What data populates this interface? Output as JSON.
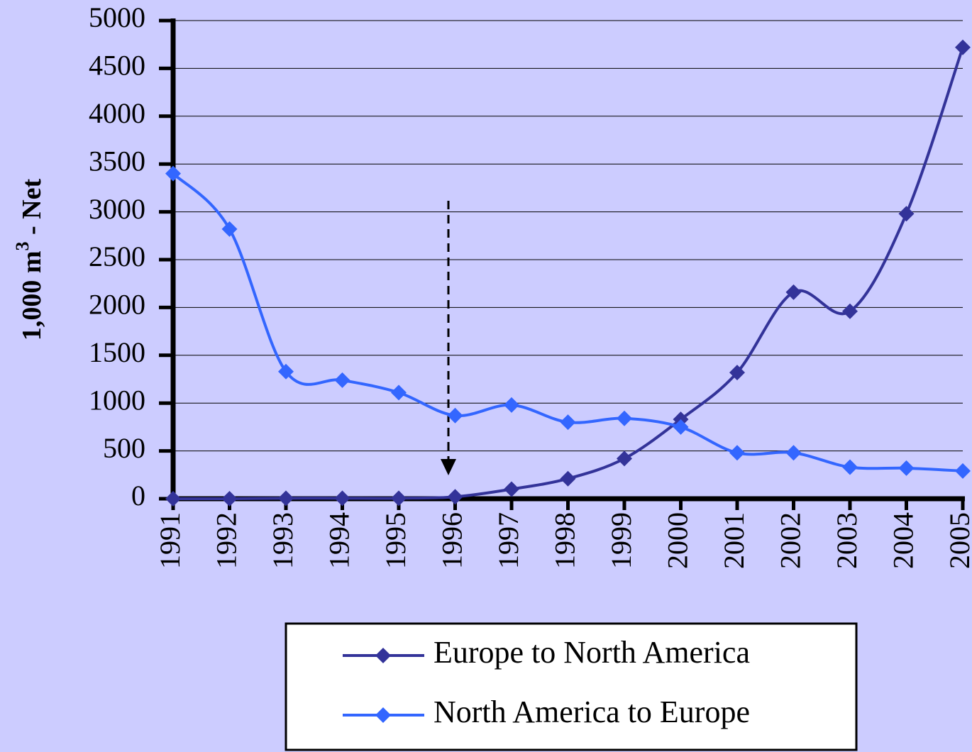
{
  "chart_data": {
    "type": "line",
    "y_label": {
      "main": "1,000 m",
      "sup": "3",
      "rest": " - Net"
    },
    "categories": [
      "1991",
      "1992",
      "1993",
      "1994",
      "1995",
      "1996",
      "1997",
      "1998",
      "1999",
      "2000",
      "2001",
      "2002",
      "2003",
      "2004",
      "2005"
    ],
    "series": [
      {
        "name": "Europe to North America",
        "color": "#333399",
        "values": [
          0,
          0,
          5,
          5,
          5,
          20,
          100,
          210,
          420,
          830,
          1320,
          2160,
          1960,
          2980,
          4720
        ]
      },
      {
        "name": "North America to Europe",
        "color": "#3366ff",
        "values": [
          3400,
          2820,
          1330,
          1240,
          1110,
          870,
          980,
          800,
          840,
          750,
          480,
          480,
          330,
          320,
          290
        ]
      }
    ],
    "ylim": [
      0,
      5000
    ],
    "yticks": [
      0,
      500,
      1000,
      1500,
      2000,
      2500,
      3000,
      3500,
      4000,
      4500,
      5000
    ],
    "grid": true
  }
}
